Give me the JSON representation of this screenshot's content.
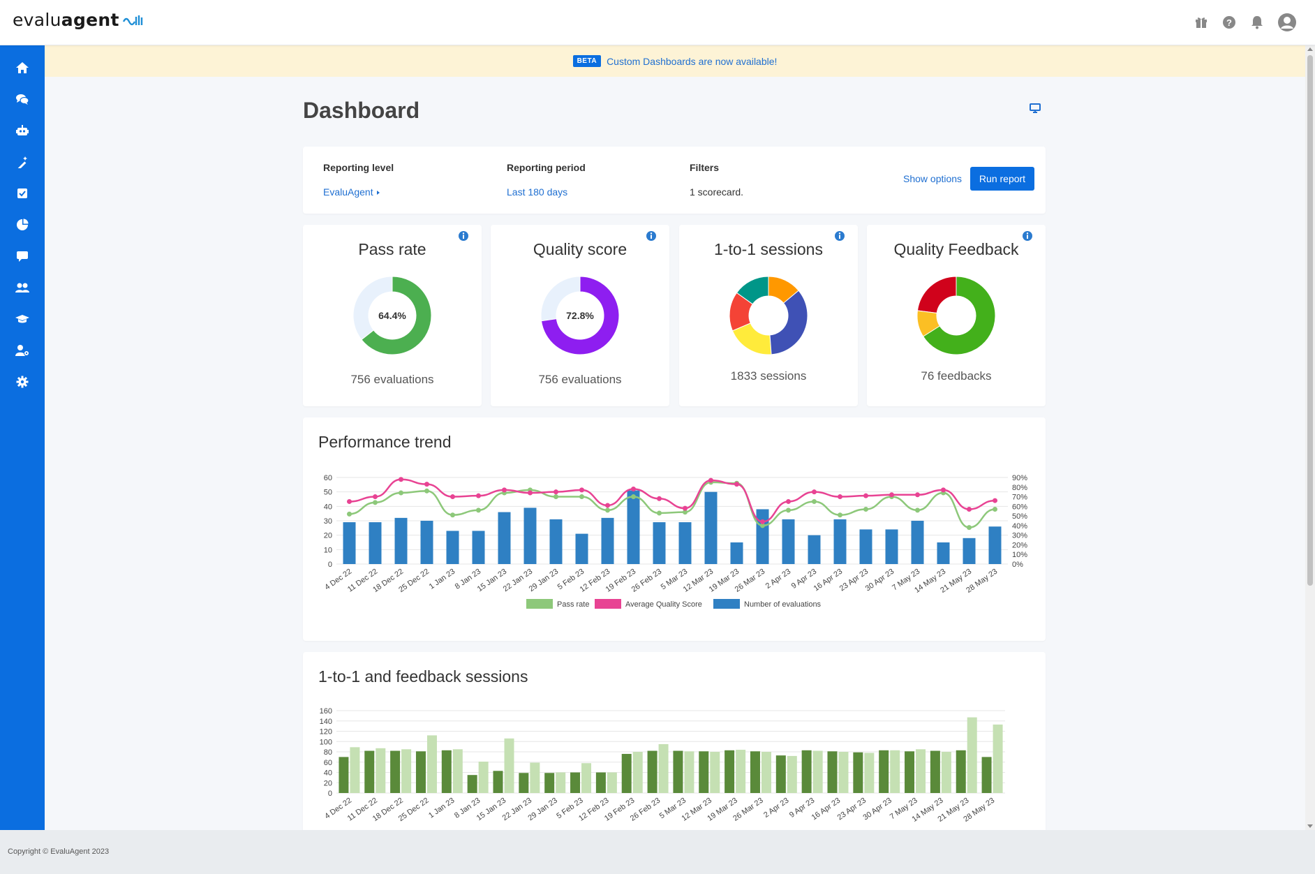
{
  "app": {
    "logo_text_light": "evalu",
    "logo_text_bold": "agent"
  },
  "header_icons": [
    {
      "name": "gift-icon"
    },
    {
      "name": "help-icon"
    },
    {
      "name": "bell-icon"
    },
    {
      "name": "user-avatar-icon"
    }
  ],
  "sidebar": {
    "items": [
      {
        "name": "home-icon"
      },
      {
        "name": "conversations-icon"
      },
      {
        "name": "bot-icon"
      },
      {
        "name": "magic-wand-icon"
      },
      {
        "name": "checkbox-icon"
      },
      {
        "name": "pie-chart-icon"
      },
      {
        "name": "comment-icon"
      },
      {
        "name": "users-icon"
      },
      {
        "name": "graduation-cap-icon"
      },
      {
        "name": "user-settings-icon"
      },
      {
        "name": "gear-icon"
      }
    ],
    "color": "#0b6ee0"
  },
  "banner": {
    "badge": "BETA",
    "text": "Custom Dashboards are now available!"
  },
  "page": {
    "title": "Dashboard"
  },
  "filters": {
    "reporting_level_label": "Reporting level",
    "reporting_level_value": "EvaluAgent",
    "reporting_period_label": "Reporting period",
    "reporting_period_value": "Last 180 days",
    "filters_label": "Filters",
    "filters_value": "1 scorecard.",
    "show_options": "Show options",
    "run_report": "Run report"
  },
  "kpis": {
    "pass_rate": {
      "title": "Pass rate",
      "value_label": "64.4%",
      "value": 64.4,
      "footer": "756 evaluations",
      "color": "#4caf50"
    },
    "quality_score": {
      "title": "Quality score",
      "value_label": "72.8%",
      "value": 72.8,
      "footer": "756 evaluations",
      "color": "#8e1ef0"
    },
    "sessions": {
      "title": "1-to-1 sessions",
      "footer": "1833 sessions",
      "segments": [
        {
          "value": 12,
          "color": "#ff9800"
        },
        {
          "value": 30,
          "color": "#3f51b5"
        },
        {
          "value": 17,
          "color": "#ffeb3b"
        },
        {
          "value": 14,
          "color": "#f44336"
        },
        {
          "value": 13,
          "color": "#009688"
        }
      ]
    },
    "feedback": {
      "title": "Quality Feedback",
      "footer": "76 feedbacks",
      "segments": [
        {
          "value": 66,
          "color": "#43b01b"
        },
        {
          "value": 11,
          "color": "#fbbf24"
        },
        {
          "value": 23,
          "color": "#d0021b"
        }
      ]
    }
  },
  "performance": {
    "title": "Performance trend",
    "chart_data": {
      "type": "bar",
      "categories": [
        "4 Dec 22",
        "11 Dec 22",
        "18 Dec 22",
        "25 Dec 22",
        "1 Jan 23",
        "8 Jan 23",
        "15 Jan 23",
        "22 Jan 23",
        "29 Jan 23",
        "5 Feb 23",
        "12 Feb 23",
        "19 Feb 23",
        "26 Feb 23",
        "5 Mar 23",
        "12 Mar 23",
        "19 Mar 23",
        "26 Mar 23",
        "2 Apr 23",
        "9 Apr 23",
        "16 Apr 23",
        "23 Apr 23",
        "30 Apr 23",
        "7 May 23",
        "14 May 23",
        "21 May 23",
        "28 May 23"
      ],
      "series": [
        {
          "name": "Number of evaluations",
          "type": "bar",
          "axis": "left",
          "color": "#2f80c3",
          "values": [
            29,
            29,
            32,
            30,
            23,
            23,
            36,
            39,
            31,
            21,
            32,
            51,
            29,
            29,
            50,
            15,
            38,
            31,
            20,
            31,
            24,
            24,
            30,
            15,
            18,
            26
          ]
        },
        {
          "name": "Pass rate",
          "type": "line",
          "axis": "right",
          "color": "#8dc87a",
          "values": [
            52,
            64,
            74,
            76,
            51,
            56,
            74,
            77,
            70,
            70,
            56,
            70,
            53,
            54,
            85,
            84,
            40,
            56,
            65,
            51,
            57,
            70,
            56,
            74,
            38,
            57
          ]
        },
        {
          "name": "Average Quality Score",
          "type": "line",
          "axis": "right",
          "color": "#e84393",
          "values": [
            65,
            70,
            88,
            83,
            70,
            71,
            77,
            74,
            75,
            77,
            61,
            78,
            68,
            58,
            87,
            83,
            44,
            65,
            75,
            70,
            71,
            72,
            72,
            77,
            57,
            66
          ]
        }
      ],
      "y_left": {
        "ticks": [
          0,
          10,
          20,
          30,
          40,
          50,
          60
        ],
        "min": 0,
        "max": 60
      },
      "y_right": {
        "ticks": [
          "0%",
          "10%",
          "20%",
          "30%",
          "40%",
          "50%",
          "60%",
          "70%",
          "80%",
          "90%"
        ],
        "min": 0,
        "max": 90
      },
      "legend": [
        "Pass rate",
        "Average Quality Score",
        "Number of evaluations"
      ],
      "legend_position": "bottom"
    }
  },
  "sessions_chart": {
    "title": "1-to-1 and feedback sessions",
    "chart_data": {
      "type": "bar",
      "categories": [
        "4 Dec 22",
        "11 Dec 22",
        "18 Dec 22",
        "25 Dec 22",
        "1 Jan 23",
        "8 Jan 23",
        "15 Jan 23",
        "22 Jan 23",
        "29 Jan 23",
        "5 Feb 23",
        "12 Feb 23",
        "19 Feb 23",
        "26 Feb 23",
        "5 Mar 23",
        "12 Mar 23",
        "19 Mar 23",
        "26 Mar 23",
        "2 Apr 23",
        "9 Apr 23",
        "16 Apr 23",
        "23 Apr 23",
        "30 Apr 23",
        "7 May 23",
        "14 May 23",
        "21 May 23",
        "28 May 23"
      ],
      "series": [
        {
          "color": "#5a8a3a",
          "values": [
            70,
            82,
            82,
            81,
            83,
            35,
            43,
            39,
            39,
            40,
            40,
            76,
            82,
            82,
            81,
            83,
            81,
            73,
            83,
            81,
            79,
            83,
            81,
            82,
            83,
            70
          ]
        },
        {
          "color": "#c5e0b3",
          "values": [
            89,
            87,
            85,
            112,
            85,
            61,
            106,
            59,
            40,
            58,
            40,
            80,
            95,
            81,
            80,
            84,
            80,
            72,
            82,
            80,
            78,
            83,
            85,
            80,
            147,
            133
          ]
        }
      ],
      "y": {
        "ticks": [
          0,
          20,
          40,
          60,
          80,
          100,
          120,
          140,
          160
        ],
        "min": 0,
        "max": 160
      }
    }
  },
  "footer": {
    "copyright": "Copyright © EvaluAgent 2023"
  }
}
